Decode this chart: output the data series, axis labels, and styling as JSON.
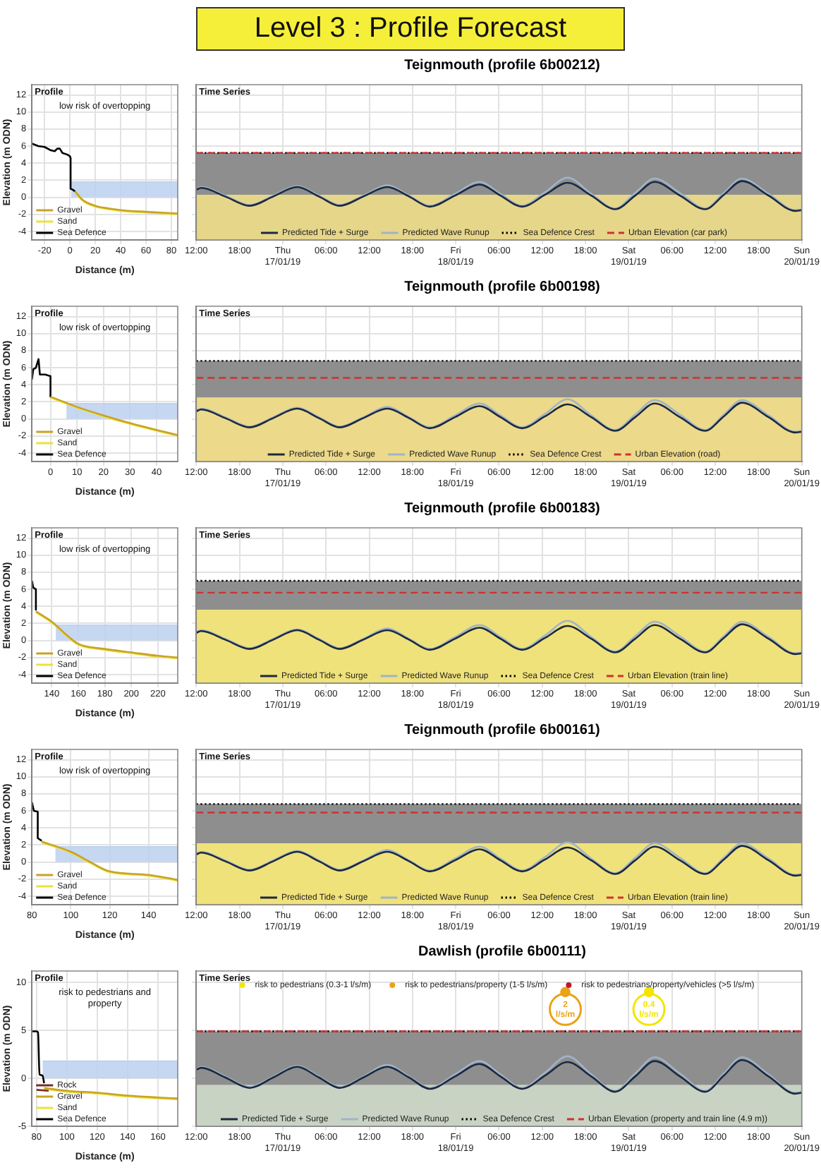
{
  "chart_data": [
    {
      "type": "other",
      "title": "Level 3 : Profile Forecast"
    },
    {
      "type": "line",
      "xlabel": "Distance (m)",
      "ylabel": "Elevation (m ODN)",
      "xlim": [
        -30,
        85
      ],
      "xticks": [
        -20,
        0,
        20,
        40,
        60,
        80
      ],
      "ylim": [
        -5,
        13.2
      ],
      "yticks": [
        -4,
        -2,
        0,
        2,
        4,
        6,
        8,
        10,
        12
      ],
      "grid": true,
      "legend": "bottom left",
      "annotations": [
        "Profile",
        "low risk of overtopping"
      ],
      "series": [
        {
          "type": "area",
          "color": "#bcd0f0",
          "x": [
            1,
            85
          ],
          "values": [
            1.8,
            1.8
          ]
        },
        {
          "name": "Gravel",
          "color": "#c9a227",
          "x": [
            4,
            10,
            20,
            30,
            40,
            60,
            85
          ],
          "values": [
            0.7,
            -0.3,
            -1.0,
            -1.3,
            -1.5,
            -1.7,
            -1.9
          ]
        },
        {
          "name": "Sand",
          "color": "#e9e33c",
          "x": [
            4,
            10,
            20,
            30,
            40,
            60,
            85
          ],
          "values": [
            0.6,
            -0.4,
            -1.1,
            -1.4,
            -1.6,
            -1.8,
            -2.0
          ]
        },
        {
          "name": "Sea Defence",
          "color": "#000000",
          "x": [
            -30,
            -25,
            -20,
            -15,
            -12,
            -10,
            -8,
            -6,
            -2,
            0,
            0.5,
            0.5,
            2,
            4
          ],
          "values": [
            6.3,
            6.0,
            5.9,
            5.5,
            5.4,
            5.7,
            5.7,
            5.2,
            5.0,
            4.8,
            4.6,
            1.0,
            0.9,
            0.7
          ]
        }
      ]
    },
    {
      "type": "line",
      "title": "Teignmouth  (profile 6b00212)",
      "xlim": [
        "--01-16T12:00",
        "--01-20T00:00"
      ],
      "xticks": [
        {
          "value": "--01-16T12:00",
          "label": "12:00"
        },
        {
          "value": "--01-16T18:00",
          "label": "18:00"
        },
        {
          "value": "--01-17T00:00",
          "label": "Thu\n17/01/19"
        },
        {
          "value": "--01-17T06:00",
          "label": "06:00"
        },
        {
          "value": "--01-17T12:00",
          "label": "12:00"
        },
        {
          "value": "--01-17T18:00",
          "label": "18:00"
        },
        {
          "value": "--01-18T00:00",
          "label": "Fri\n18/01/19"
        },
        {
          "value": "--01-18T06:00",
          "label": "06:00"
        },
        {
          "value": "--01-18T12:00",
          "label": "12:00"
        },
        {
          "value": "--01-18T18:00",
          "label": "18:00"
        },
        {
          "value": "--01-19T00:00",
          "label": "Sat\n19/01/19"
        },
        {
          "value": "--01-19T06:00",
          "label": "06:00"
        },
        {
          "value": "--01-19T12:00",
          "label": "12:00"
        },
        {
          "value": "--01-19T18:00",
          "label": "18:00"
        },
        {
          "value": "--01-20T00:00",
          "label": "Sun\n20/01/19"
        }
      ],
      "ylim": [
        -5,
        13.2
      ],
      "yticks": [
        -4,
        -2,
        0,
        2,
        4,
        6,
        8,
        10,
        12
      ],
      "tick_labels": "x",
      "grid": true,
      "legend": "bottom",
      "annotations": [
        "Time Series"
      ],
      "x": [
        "--01-16T12:00",
        "--01-16T12:42",
        "--01-16T16:00",
        "--01-16T19:24",
        "--01-16T22:42",
        "--01-17T02:00",
        "--01-17T05:00",
        "--01-17T07:54",
        "--01-17T11:12",
        "--01-17T14:30",
        "--01-17T17:30",
        "--01-17T20:24",
        "--01-17T23:54",
        "--01-18T03:18",
        "--01-18T06:12",
        "--01-18T09:12",
        "--01-18T12:24",
        "--01-18T15:30",
        "--01-18T18:48",
        "--01-18T22:06",
        "--01-19T00:54",
        "--01-19T03:36",
        "--01-19T07:06",
        "--01-19T10:36",
        "--01-19T13:12",
        "--01-19T15:42",
        "--01-19T19:24",
        "--01-19T23:06",
        "--01-20T00:00"
      ],
      "bands": [
        {
          "axis": "y",
          "from": -5,
          "to": 0.3,
          "color": "#e6d68a"
        },
        {
          "axis": "y",
          "from": 0.3,
          "to": 5.2,
          "color": "#8e8e8e"
        }
      ],
      "ref_lines": [
        {
          "axis": "y",
          "value": 5.2,
          "label": "Sea Defence Crest",
          "color": "#000000",
          "line_style": "dotted"
        },
        {
          "axis": "y",
          "value": 5.2,
          "label": "Urban Elevation (car park)",
          "color": "#d03030",
          "line_style": "dashed"
        }
      ],
      "series": [
        {
          "name": "Predicted Tide + Surge",
          "color": "#1c2940",
          "values": [
            0.9,
            1.1,
            0.1,
            -1.0,
            0.1,
            1.2,
            0.1,
            -1.0,
            0.1,
            1.2,
            0.1,
            -1.1,
            0.2,
            1.5,
            0.2,
            -1.1,
            0.3,
            1.7,
            0.2,
            -1.4,
            0.2,
            1.8,
            0.2,
            -1.4,
            0.3,
            1.9,
            0.2,
            -1.6,
            -1.5
          ]
        },
        {
          "name": "Predicted Wave Runup",
          "color": "#9fb4c8",
          "values": [
            1.0,
            1.2,
            0.2,
            -0.9,
            0.2,
            1.3,
            0.2,
            -0.9,
            0.2,
            1.4,
            0.2,
            -1.0,
            0.4,
            1.8,
            0.4,
            -1.0,
            0.6,
            2.3,
            0.4,
            -1.3,
            0.5,
            2.2,
            0.5,
            -1.3,
            0.5,
            2.2,
            0.4,
            -1.5,
            -1.4
          ]
        }
      ]
    },
    {
      "type": "line",
      "xlabel": "Distance (m)",
      "ylabel": "Elevation (m ODN)",
      "xlim": [
        -7,
        48
      ],
      "xticks": [
        0,
        10,
        20,
        30,
        40
      ],
      "ylim": [
        -5,
        13.2
      ],
      "yticks": [
        -4,
        -2,
        0,
        2,
        4,
        6,
        8,
        10,
        12
      ],
      "grid": true,
      "legend": "bottom left",
      "annotations": [
        "Profile",
        "low risk of overtopping"
      ],
      "series": [
        {
          "type": "area",
          "color": "#bcd0f0",
          "x": [
            6,
            48
          ],
          "values": [
            1.8,
            1.8
          ]
        },
        {
          "name": "Gravel",
          "color": "#c9a227",
          "x": [
            0,
            5,
            10,
            20,
            30,
            40,
            48
          ],
          "values": [
            2.6,
            2.0,
            1.4,
            0.4,
            -0.5,
            -1.3,
            -1.9
          ]
        },
        {
          "name": "Sand",
          "color": "#e9e33c",
          "x": [
            0,
            5,
            10,
            20,
            30,
            40,
            48
          ],
          "values": [
            2.5,
            1.9,
            1.3,
            0.3,
            -0.6,
            -1.4,
            -2.0
          ]
        },
        {
          "name": "Sea Defence",
          "color": "#000000",
          "x": [
            -7,
            -6.5,
            -5.5,
            -5,
            -4.5,
            -4,
            -2,
            0,
            0
          ],
          "values": [
            4.6,
            5.8,
            6.0,
            6.5,
            7.0,
            5.2,
            5.2,
            5.0,
            2.6
          ]
        }
      ]
    },
    {
      "type": "line",
      "title": "Teignmouth  (profile 6b00198)",
      "xlim": [
        "--01-16T12:00",
        "--01-20T00:00"
      ],
      "xticks": [
        {
          "value": "--01-16T12:00",
          "label": "12:00"
        },
        {
          "value": "--01-16T18:00",
          "label": "18:00"
        },
        {
          "value": "--01-17T00:00",
          "label": "Thu\n17/01/19"
        },
        {
          "value": "--01-17T06:00",
          "label": "06:00"
        },
        {
          "value": "--01-17T12:00",
          "label": "12:00"
        },
        {
          "value": "--01-17T18:00",
          "label": "18:00"
        },
        {
          "value": "--01-18T00:00",
          "label": "Fri\n18/01/19"
        },
        {
          "value": "--01-18T06:00",
          "label": "06:00"
        },
        {
          "value": "--01-18T12:00",
          "label": "12:00"
        },
        {
          "value": "--01-18T18:00",
          "label": "18:00"
        },
        {
          "value": "--01-19T00:00",
          "label": "Sat\n19/01/19"
        },
        {
          "value": "--01-19T06:00",
          "label": "06:00"
        },
        {
          "value": "--01-19T12:00",
          "label": "12:00"
        },
        {
          "value": "--01-19T18:00",
          "label": "18:00"
        },
        {
          "value": "--01-20T00:00",
          "label": "Sun\n20/01/19"
        }
      ],
      "ylim": [
        -5,
        13.2
      ],
      "yticks": [
        -4,
        -2,
        0,
        2,
        4,
        6,
        8,
        10,
        12
      ],
      "tick_labels": "x",
      "grid": true,
      "legend": "bottom",
      "annotations": [
        "Time Series"
      ],
      "x": [
        "--01-16T12:00",
        "--01-16T12:42",
        "--01-16T16:00",
        "--01-16T19:24",
        "--01-16T22:42",
        "--01-17T02:00",
        "--01-17T05:00",
        "--01-17T07:54",
        "--01-17T11:12",
        "--01-17T14:30",
        "--01-17T17:30",
        "--01-17T20:24",
        "--01-17T23:54",
        "--01-18T03:18",
        "--01-18T06:12",
        "--01-18T09:12",
        "--01-18T12:24",
        "--01-18T15:30",
        "--01-18T18:48",
        "--01-18T22:06",
        "--01-19T00:54",
        "--01-19T03:36",
        "--01-19T07:06",
        "--01-19T10:36",
        "--01-19T13:12",
        "--01-19T15:42",
        "--01-19T19:24",
        "--01-19T23:06",
        "--01-20T00:00"
      ],
      "bands": [
        {
          "axis": "y",
          "from": -5,
          "to": 2.5,
          "color": "#ecd98a"
        },
        {
          "axis": "y",
          "from": 2.5,
          "to": 6.8,
          "color": "#8e8e8e"
        }
      ],
      "ref_lines": [
        {
          "axis": "y",
          "value": 6.8,
          "label": "Sea Defence Crest",
          "color": "#000000",
          "line_style": "dotted"
        },
        {
          "axis": "y",
          "value": 4.8,
          "label": "Urban Elevation (road)",
          "color": "#d03030",
          "line_style": "dashed"
        }
      ],
      "series": [
        {
          "name": "Predicted Tide + Surge",
          "color": "#1c2940",
          "values": [
            0.9,
            1.1,
            0.1,
            -1.0,
            0.1,
            1.2,
            0.1,
            -1.0,
            0.1,
            1.2,
            0.1,
            -1.1,
            0.2,
            1.5,
            0.2,
            -1.1,
            0.3,
            1.7,
            0.2,
            -1.4,
            0.2,
            1.8,
            0.2,
            -1.4,
            0.3,
            1.9,
            0.2,
            -1.6,
            -1.5
          ]
        },
        {
          "name": "Predicted Wave Runup",
          "color": "#9fb4c8",
          "values": [
            1.0,
            1.2,
            0.2,
            -0.9,
            0.2,
            1.3,
            0.2,
            -0.9,
            0.2,
            1.4,
            0.2,
            -1.0,
            0.4,
            1.8,
            0.4,
            -1.0,
            0.6,
            2.3,
            0.4,
            -1.3,
            0.5,
            2.2,
            0.5,
            -1.3,
            0.5,
            2.2,
            0.4,
            -1.5,
            -1.4
          ]
        }
      ]
    },
    {
      "type": "line",
      "xlabel": "Distance (m)",
      "ylabel": "Elevation (m ODN)",
      "xlim": [
        125,
        235
      ],
      "xticks": [
        140,
        160,
        180,
        200,
        220
      ],
      "ylim": [
        -5,
        13.2
      ],
      "yticks": [
        -4,
        -2,
        0,
        2,
        4,
        6,
        8,
        10,
        12
      ],
      "grid": true,
      "legend": "bottom left",
      "annotations": [
        "Profile",
        "low risk of overtopping"
      ],
      "series": [
        {
          "type": "area",
          "color": "#bcd0f0",
          "x": [
            143,
            235
          ],
          "values": [
            1.8,
            1.8
          ]
        },
        {
          "name": "Gravel",
          "color": "#c9a227",
          "x": [
            128,
            140,
            150,
            160,
            180,
            200,
            220,
            235
          ],
          "values": [
            3.4,
            2.2,
            0.8,
            -0.4,
            -1.0,
            -1.4,
            -1.8,
            -2.0
          ]
        },
        {
          "name": "Sand",
          "color": "#e9e33c",
          "x": [
            128,
            140,
            150,
            160,
            180,
            200,
            220,
            235
          ],
          "values": [
            3.3,
            2.1,
            0.7,
            -0.5,
            -1.1,
            -1.5,
            -1.9,
            -2.1
          ]
        },
        {
          "name": "Sea Defence",
          "color": "#000000",
          "x": [
            125,
            126,
            128,
            128
          ],
          "values": [
            7.0,
            6.2,
            6.0,
            3.6
          ]
        }
      ]
    },
    {
      "type": "line",
      "title": "Teignmouth  (profile 6b00183)",
      "xlim": [
        "--01-16T12:00",
        "--01-20T00:00"
      ],
      "xticks": [
        {
          "value": "--01-16T12:00",
          "label": "12:00"
        },
        {
          "value": "--01-16T18:00",
          "label": "18:00"
        },
        {
          "value": "--01-17T00:00",
          "label": "Thu\n17/01/19"
        },
        {
          "value": "--01-17T06:00",
          "label": "06:00"
        },
        {
          "value": "--01-17T12:00",
          "label": "12:00"
        },
        {
          "value": "--01-17T18:00",
          "label": "18:00"
        },
        {
          "value": "--01-18T00:00",
          "label": "Fri\n18/01/19"
        },
        {
          "value": "--01-18T06:00",
          "label": "06:00"
        },
        {
          "value": "--01-18T12:00",
          "label": "12:00"
        },
        {
          "value": "--01-18T18:00",
          "label": "18:00"
        },
        {
          "value": "--01-19T00:00",
          "label": "Sat\n19/01/19"
        },
        {
          "value": "--01-19T06:00",
          "label": "06:00"
        },
        {
          "value": "--01-19T12:00",
          "label": "12:00"
        },
        {
          "value": "--01-19T18:00",
          "label": "18:00"
        },
        {
          "value": "--01-20T00:00",
          "label": "Sun\n20/01/19"
        }
      ],
      "ylim": [
        -5,
        13.2
      ],
      "yticks": [
        -4,
        -2,
        0,
        2,
        4,
        6,
        8,
        10,
        12
      ],
      "tick_labels": "x",
      "grid": true,
      "legend": "bottom",
      "annotations": [
        "Time Series"
      ],
      "x": [
        "--01-16T12:00",
        "--01-16T12:42",
        "--01-16T16:00",
        "--01-16T19:24",
        "--01-16T22:42",
        "--01-17T02:00",
        "--01-17T05:00",
        "--01-17T07:54",
        "--01-17T11:12",
        "--01-17T14:30",
        "--01-17T17:30",
        "--01-17T20:24",
        "--01-17T23:54",
        "--01-18T03:18",
        "--01-18T06:12",
        "--01-18T09:12",
        "--01-18T12:24",
        "--01-18T15:30",
        "--01-18T18:48",
        "--01-18T22:06",
        "--01-19T00:54",
        "--01-19T03:36",
        "--01-19T07:06",
        "--01-19T10:36",
        "--01-19T13:12",
        "--01-19T15:42",
        "--01-19T19:24",
        "--01-19T23:06",
        "--01-20T00:00"
      ],
      "bands": [
        {
          "axis": "y",
          "from": -5,
          "to": 3.6,
          "color": "#f0e27a"
        },
        {
          "axis": "y",
          "from": 3.6,
          "to": 7.0,
          "color": "#8e8e8e"
        }
      ],
      "ref_lines": [
        {
          "axis": "y",
          "value": 7.0,
          "label": "Sea Defence Crest",
          "color": "#000000",
          "line_style": "dotted"
        },
        {
          "axis": "y",
          "value": 5.6,
          "label": "Urban Elevation (train line)",
          "color": "#d03030",
          "line_style": "dashed"
        }
      ],
      "series": [
        {
          "name": "Predicted Tide + Surge",
          "color": "#1c2940",
          "values": [
            0.9,
            1.1,
            0.1,
            -1.0,
            0.1,
            1.2,
            0.1,
            -1.0,
            0.1,
            1.2,
            0.1,
            -1.1,
            0.2,
            1.5,
            0.2,
            -1.1,
            0.3,
            1.7,
            0.2,
            -1.4,
            0.2,
            1.8,
            0.2,
            -1.4,
            0.3,
            1.9,
            0.2,
            -1.6,
            -1.5
          ]
        },
        {
          "name": "Predicted Wave Runup",
          "color": "#9fb4c8",
          "values": [
            1.0,
            1.2,
            0.2,
            -0.9,
            0.2,
            1.3,
            0.2,
            -0.9,
            0.2,
            1.4,
            0.2,
            -1.0,
            0.4,
            1.8,
            0.4,
            -1.0,
            0.6,
            2.3,
            0.4,
            -1.3,
            0.5,
            2.2,
            0.5,
            -1.3,
            0.5,
            2.2,
            0.4,
            -1.5,
            -1.4
          ]
        }
      ]
    },
    {
      "type": "line",
      "xlabel": "Distance (m)",
      "ylabel": "Elevation (m ODN)",
      "xlim": [
        80,
        155
      ],
      "xticks": [
        80,
        100,
        120,
        140
      ],
      "ylim": [
        -5,
        13.2
      ],
      "yticks": [
        -4,
        -2,
        0,
        2,
        4,
        6,
        8,
        10,
        12
      ],
      "grid": true,
      "legend": "bottom left",
      "annotations": [
        "Profile",
        "low risk of overtopping"
      ],
      "series": [
        {
          "type": "area",
          "color": "#bcd0f0",
          "x": [
            92,
            155
          ],
          "values": [
            1.8,
            1.8
          ]
        },
        {
          "name": "Gravel",
          "color": "#c9a227",
          "x": [
            85,
            100,
            110,
            120,
            140,
            155
          ],
          "values": [
            2.4,
            1.2,
            0.0,
            -1.1,
            -1.5,
            -2.1
          ]
        },
        {
          "name": "Sand",
          "color": "#e9e33c",
          "x": [
            85,
            100,
            110,
            120,
            140,
            155
          ],
          "values": [
            2.3,
            1.1,
            -0.1,
            -1.2,
            -1.6,
            -2.2
          ]
        },
        {
          "name": "Sea Defence",
          "color": "#000000",
          "x": [
            80,
            81,
            83,
            83,
            85
          ],
          "values": [
            7.0,
            6.0,
            5.9,
            2.8,
            2.5
          ]
        }
      ]
    },
    {
      "type": "line",
      "title": "Teignmouth  (profile 6b00161)",
      "xlim": [
        "--01-16T12:00",
        "--01-20T00:00"
      ],
      "xticks": [
        {
          "value": "--01-16T12:00",
          "label": "12:00"
        },
        {
          "value": "--01-16T18:00",
          "label": "18:00"
        },
        {
          "value": "--01-17T00:00",
          "label": "Thu\n17/01/19"
        },
        {
          "value": "--01-17T06:00",
          "label": "06:00"
        },
        {
          "value": "--01-17T12:00",
          "label": "12:00"
        },
        {
          "value": "--01-17T18:00",
          "label": "18:00"
        },
        {
          "value": "--01-18T00:00",
          "label": "Fri\n18/01/19"
        },
        {
          "value": "--01-18T06:00",
          "label": "06:00"
        },
        {
          "value": "--01-18T12:00",
          "label": "12:00"
        },
        {
          "value": "--01-18T18:00",
          "label": "18:00"
        },
        {
          "value": "--01-19T00:00",
          "label": "Sat\n19/01/19"
        },
        {
          "value": "--01-19T06:00",
          "label": "06:00"
        },
        {
          "value": "--01-19T12:00",
          "label": "12:00"
        },
        {
          "value": "--01-19T18:00",
          "label": "18:00"
        },
        {
          "value": "--01-20T00:00",
          "label": "Sun\n20/01/19"
        }
      ],
      "ylim": [
        -5,
        13.2
      ],
      "yticks": [
        -4,
        -2,
        0,
        2,
        4,
        6,
        8,
        10,
        12
      ],
      "tick_labels": "x",
      "grid": true,
      "legend": "bottom",
      "annotations": [
        "Time Series"
      ],
      "x": [
        "--01-16T12:00",
        "--01-16T12:42",
        "--01-16T16:00",
        "--01-16T19:24",
        "--01-16T22:42",
        "--01-17T02:00",
        "--01-17T05:00",
        "--01-17T07:54",
        "--01-17T11:12",
        "--01-17T14:30",
        "--01-17T17:30",
        "--01-17T20:24",
        "--01-17T23:54",
        "--01-18T03:18",
        "--01-18T06:12",
        "--01-18T09:12",
        "--01-18T12:24",
        "--01-18T15:30",
        "--01-18T18:48",
        "--01-18T22:06",
        "--01-19T00:54",
        "--01-19T03:36",
        "--01-19T07:06",
        "--01-19T10:36",
        "--01-19T13:12",
        "--01-19T15:42",
        "--01-19T19:24",
        "--01-19T23:06",
        "--01-20T00:00"
      ],
      "bands": [
        {
          "axis": "y",
          "from": -5,
          "to": 2.2,
          "color": "#f0e27a"
        },
        {
          "axis": "y",
          "from": 2.2,
          "to": 6.8,
          "color": "#8e8e8e"
        }
      ],
      "ref_lines": [
        {
          "axis": "y",
          "value": 6.8,
          "label": "Sea Defence Crest",
          "color": "#000000",
          "line_style": "dotted"
        },
        {
          "axis": "y",
          "value": 5.8,
          "label": "Urban Elevation (train line)",
          "color": "#d03030",
          "line_style": "dashed"
        }
      ],
      "series": [
        {
          "name": "Predicted Tide + Surge",
          "color": "#1c2940",
          "values": [
            0.9,
            1.1,
            0.1,
            -1.0,
            0.1,
            1.2,
            0.1,
            -1.0,
            0.1,
            1.2,
            0.1,
            -1.1,
            0.2,
            1.5,
            0.2,
            -1.1,
            0.3,
            1.7,
            0.2,
            -1.4,
            0.2,
            1.8,
            0.2,
            -1.4,
            0.3,
            1.9,
            0.2,
            -1.6,
            -1.5
          ]
        },
        {
          "name": "Predicted Wave Runup",
          "color": "#9fb4c8",
          "values": [
            1.0,
            1.2,
            0.2,
            -0.9,
            0.2,
            1.3,
            0.2,
            -0.9,
            0.2,
            1.4,
            0.2,
            -1.0,
            0.4,
            1.8,
            0.4,
            -1.0,
            0.6,
            2.3,
            0.4,
            -1.3,
            0.5,
            2.2,
            0.5,
            -1.3,
            0.5,
            2.2,
            0.4,
            -1.5,
            -1.4
          ]
        }
      ]
    },
    {
      "type": "line",
      "xlabel": "Distance (m)",
      "ylabel": "Elevation (m ODN)",
      "xlim": [
        77,
        173
      ],
      "xticks": [
        80,
        100,
        120,
        140,
        160
      ],
      "ylim": [
        -5,
        11.2
      ],
      "yticks": [
        -5,
        0,
        5,
        10
      ],
      "grid": true,
      "legend": "bottom left",
      "annotations": [
        "Profile",
        "risk to pedestrians and property"
      ],
      "series": [
        {
          "type": "area",
          "color": "#bcd0f0",
          "x": [
            84,
            173
          ],
          "values": [
            1.8,
            1.8
          ]
        },
        {
          "name": "Rock",
          "color": "#7a2e1e",
          "x": [
            80,
            88
          ],
          "values": [
            -1.2,
            -1.3
          ]
        },
        {
          "name": "Gravel",
          "color": "#c9a227",
          "x": [
            85,
            100,
            120,
            140,
            160,
            173
          ],
          "values": [
            -1.0,
            -1.3,
            -1.5,
            -1.8,
            -2.0,
            -2.1
          ]
        },
        {
          "name": "Sand",
          "color": "#e9e33c",
          "x": [
            85,
            100,
            120,
            140,
            160,
            173
          ],
          "values": [
            -1.1,
            -1.4,
            -1.6,
            -1.9,
            -2.1,
            -2.2
          ]
        },
        {
          "name": "Sea Defence",
          "color": "#000000",
          "x": [
            77,
            80,
            81,
            82,
            84,
            85
          ],
          "values": [
            4.9,
            4.9,
            4.8,
            0.4,
            0.3,
            -0.5
          ]
        }
      ]
    },
    {
      "type": "line",
      "title": "Dawlish (profile 6b00111)",
      "xlim": [
        "--01-16T12:00",
        "--01-20T00:00"
      ],
      "xticks": [
        {
          "value": "--01-16T12:00",
          "label": "12:00"
        },
        {
          "value": "--01-16T18:00",
          "label": "18:00"
        },
        {
          "value": "--01-17T00:00",
          "label": "Thu\n17/01/19"
        },
        {
          "value": "--01-17T06:00",
          "label": "06:00"
        },
        {
          "value": "--01-17T12:00",
          "label": "12:00"
        },
        {
          "value": "--01-17T18:00",
          "label": "18:00"
        },
        {
          "value": "--01-18T00:00",
          "label": "Fri\n18/01/19"
        },
        {
          "value": "--01-18T06:00",
          "label": "06:00"
        },
        {
          "value": "--01-18T12:00",
          "label": "12:00"
        },
        {
          "value": "--01-18T18:00",
          "label": "18:00"
        },
        {
          "value": "--01-19T00:00",
          "label": "Sat\n19/01/19"
        },
        {
          "value": "--01-19T06:00",
          "label": "06:00"
        },
        {
          "value": "--01-19T12:00",
          "label": "12:00"
        },
        {
          "value": "--01-19T18:00",
          "label": "18:00"
        },
        {
          "value": "--01-20T00:00",
          "label": "Sun\n20/01/19"
        }
      ],
      "ylim": [
        -5,
        11.2
      ],
      "yticks": [
        -5,
        0,
        5,
        10
      ],
      "tick_labels": "x",
      "grid": true,
      "legend": "bottom",
      "annotations": [
        "Time Series",
        {
          "text": "2 l/s/m",
          "x": "--01-18T15:12",
          "y": 7.2
        },
        {
          "text": "0.4 l/s/m",
          "x": "--01-19T02:48",
          "y": 7.2
        }
      ],
      "x": [
        "--01-16T12:00",
        "--01-16T12:42",
        "--01-16T16:00",
        "--01-16T19:24",
        "--01-16T22:42",
        "--01-17T02:00",
        "--01-17T05:00",
        "--01-17T07:54",
        "--01-17T11:12",
        "--01-17T14:30",
        "--01-17T17:30",
        "--01-17T20:24",
        "--01-17T23:54",
        "--01-18T03:18",
        "--01-18T06:12",
        "--01-18T09:12",
        "--01-18T12:24",
        "--01-18T15:30",
        "--01-18T18:48",
        "--01-18T22:06",
        "--01-19T00:54",
        "--01-19T03:36",
        "--01-19T07:06",
        "--01-19T10:36",
        "--01-19T13:12",
        "--01-19T15:42",
        "--01-19T19:24",
        "--01-19T23:06",
        "--01-20T00:00"
      ],
      "bands": [
        {
          "axis": "y",
          "from": -5,
          "to": -0.7,
          "color": "#c9d3c4"
        },
        {
          "axis": "y",
          "from": -0.7,
          "to": 4.9,
          "color": "#8e8e8e"
        }
      ],
      "ref_lines": [
        {
          "axis": "y",
          "value": 4.9,
          "label": "Sea Defence Crest",
          "color": "#000000",
          "line_style": "dotted"
        },
        {
          "axis": "y",
          "value": 4.9,
          "label": "Urban Elevation (property and train line (4.9 m))",
          "color": "#d03030",
          "line_style": "dashed"
        }
      ],
      "series": [
        {
          "name": "Predicted Tide + Surge",
          "color": "#1c2940",
          "values": [
            0.9,
            1.1,
            0.1,
            -1.0,
            0.1,
            1.2,
            0.1,
            -1.0,
            0.1,
            1.2,
            0.1,
            -1.1,
            0.2,
            1.5,
            0.2,
            -1.1,
            0.3,
            1.7,
            0.2,
            -1.4,
            0.2,
            1.8,
            0.2,
            -1.4,
            0.3,
            1.9,
            0.2,
            -1.6,
            -1.5
          ]
        },
        {
          "name": "Predicted Wave Runup",
          "color": "#9fb4c8",
          "values": [
            1.0,
            1.2,
            0.2,
            -0.9,
            0.2,
            1.3,
            0.2,
            -0.9,
            0.2,
            1.4,
            0.2,
            -1.0,
            0.4,
            1.8,
            0.4,
            -1.0,
            0.6,
            2.3,
            0.4,
            -1.3,
            0.5,
            2.2,
            0.5,
            -1.3,
            0.5,
            2.2,
            0.4,
            -1.5,
            -1.4
          ]
        },
        {
          "name": "risk to pedestrians (0.3-1 l/s/m)",
          "type": "scatter",
          "color": "#f2e600",
          "x": [
            "--01-19T02:48"
          ],
          "values": [
            9.0
          ]
        },
        {
          "name": "risk to pedestrians/property (1-5 l/s/m)",
          "type": "scatter",
          "color": "#e8a317",
          "x": [
            "--01-18T15:12"
          ],
          "values": [
            9.0
          ]
        },
        {
          "name": "risk to pedestrians/property/vehicles (>5 l/s/m)",
          "type": "scatter",
          "color": "#c0182a",
          "values": [
            null,
            null,
            null,
            null,
            null,
            null,
            null,
            null,
            null,
            null,
            null,
            null,
            null,
            null,
            null,
            null,
            null,
            null,
            null,
            null,
            null,
            null,
            null,
            null,
            null,
            null,
            null,
            null,
            null
          ]
        }
      ]
    }
  ]
}
